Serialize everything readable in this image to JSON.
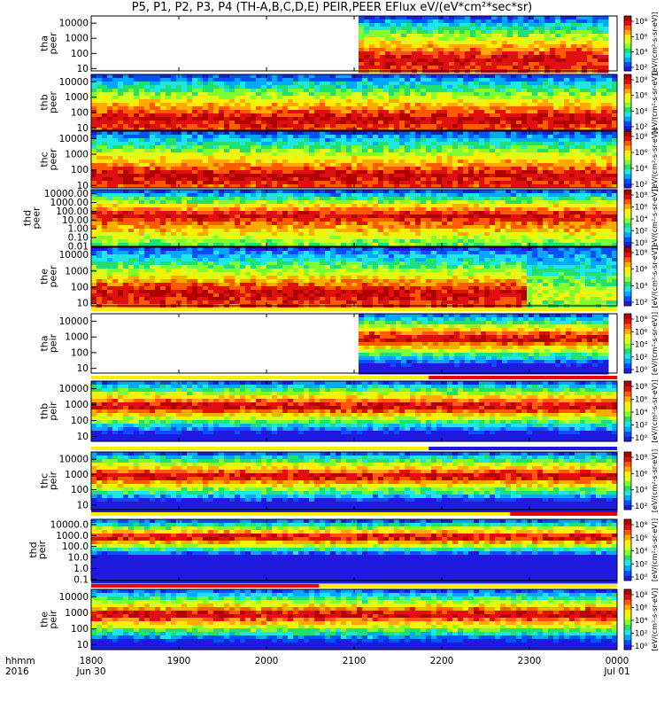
{
  "title": "P5, P1, P2, P3, P4 (TH-A,B,C,D,E) PEIR,PEER EFlux eV/(eV*cm²*sec*sr)",
  "colorbar_label": "[eV/(cm²-s-sr-eV)]",
  "colormap": [
    "#1e1ae0",
    "#0050ff",
    "#00a8ff",
    "#1ee6e6",
    "#20e070",
    "#80ff30",
    "#d8ff20",
    "#ffee00",
    "#ffaa00",
    "#ff5a00",
    "#e01010",
    "#b00000"
  ],
  "flag_colors": {
    "yellow": "#ffee00",
    "red": "#ee0000"
  },
  "chart_data": {
    "type": "heatmap",
    "x_axis": {
      "row_labels": [
        "hhmm",
        "2016"
      ],
      "tick_labels": [
        "1800",
        "1900",
        "2000",
        "2100",
        "2200",
        "2300",
        "0000"
      ],
      "tick_sublabels": [
        "Jun 30",
        "",
        "",
        "",
        "",
        "",
        "Jul 01"
      ],
      "range_hours": [
        18,
        24
      ]
    },
    "panels": [
      {
        "probe": "tha",
        "sensor": "peer",
        "y_ticks": [
          "10000",
          "1000",
          "100",
          "10"
        ],
        "y_values": [
          10000,
          1000,
          100,
          10
        ],
        "ylim": [
          7,
          30000
        ],
        "cb_ticks": [
          "10⁸",
          "10⁶",
          "10⁴",
          "10²"
        ],
        "data_start_hours": 21.05,
        "data_end_hours": 23.85
      },
      {
        "probe": "thb",
        "sensor": "peer",
        "y_ticks": [
          "10000",
          "1000",
          "100",
          "10"
        ],
        "y_values": [
          10000,
          1000,
          100,
          10
        ],
        "ylim": [
          7,
          30000
        ],
        "cb_ticks": [
          "10⁸",
          "10⁶",
          "10⁴",
          "10²"
        ],
        "data_start_hours": 18.0,
        "data_end_hours": 24.0
      },
      {
        "probe": "thc",
        "sensor": "peer",
        "y_ticks": [
          "10000",
          "1000",
          "100",
          "10"
        ],
        "y_values": [
          10000,
          1000,
          100,
          10
        ],
        "ylim": [
          7,
          30000
        ],
        "cb_ticks": [
          "10⁸",
          "10⁶",
          "10⁴",
          "10²"
        ],
        "data_start_hours": 18.0,
        "data_end_hours": 24.0
      },
      {
        "probe": "thd",
        "sensor": "peer",
        "y_ticks": [
          "10000.00",
          "1000.00",
          "100.00",
          "10.00",
          "1.00",
          "0.10",
          "0.01"
        ],
        "y_values": [
          10000,
          1000,
          100,
          10,
          1,
          0.1,
          0.01
        ],
        "ylim": [
          0.01,
          30000
        ],
        "cb_ticks": [
          "10⁸",
          "10⁶",
          "10⁴",
          "10²",
          "10⁰"
        ],
        "data_start_hours": 18.0,
        "data_end_hours": 24.0
      },
      {
        "probe": "the",
        "sensor": "peer",
        "y_ticks": [
          "10000",
          "1000",
          "100",
          "10"
        ],
        "y_values": [
          10000,
          1000,
          100,
          10
        ],
        "ylim": [
          7,
          30000
        ],
        "cb_ticks": [
          "10⁸",
          "10⁶",
          "10⁴",
          "10²"
        ],
        "data_start_hours": 18.0,
        "data_end_hours": 24.0
      },
      {
        "probe": "tha",
        "sensor": "peir",
        "y_ticks": [
          "10000",
          "1000",
          "100",
          "10"
        ],
        "y_values": [
          10000,
          1000,
          100,
          10
        ],
        "ylim": [
          5,
          30000
        ],
        "cb_ticks": [
          "10⁸",
          "10⁶",
          "10⁴",
          "10²",
          "10⁰"
        ],
        "data_start_hours": 21.05,
        "data_end_hours": 23.85
      },
      {
        "probe": "thb",
        "sensor": "peir",
        "y_ticks": [
          "10000",
          "1000",
          "100",
          "10"
        ],
        "y_values": [
          10000,
          1000,
          100,
          10
        ],
        "ylim": [
          5,
          30000
        ],
        "cb_ticks": [
          "10⁸",
          "10⁶",
          "10⁴",
          "10²",
          "10⁰"
        ],
        "data_start_hours": 18.0,
        "data_end_hours": 24.0
      },
      {
        "probe": "thc",
        "sensor": "peir",
        "y_ticks": [
          "10000",
          "1000",
          "100",
          "10"
        ],
        "y_values": [
          10000,
          1000,
          100,
          10
        ],
        "ylim": [
          5,
          30000
        ],
        "cb_ticks": [
          "10⁸",
          "10⁶",
          "10⁴",
          "10²"
        ],
        "data_start_hours": 18.0,
        "data_end_hours": 24.0
      },
      {
        "probe": "thd",
        "sensor": "peir",
        "y_ticks": [
          "10000.0",
          "1000.0",
          "100.0",
          "10.0",
          "1.0",
          "0.1"
        ],
        "y_values": [
          10000,
          1000,
          100,
          10,
          1,
          0.1
        ],
        "ylim": [
          0.08,
          30000
        ],
        "cb_ticks": [
          "10⁸",
          "10⁶",
          "10⁴",
          "10²",
          "10⁰"
        ],
        "data_start_hours": 18.0,
        "data_end_hours": 24.0
      },
      {
        "probe": "the",
        "sensor": "peir",
        "y_ticks": [
          "10000",
          "1000",
          "100",
          "10"
        ],
        "y_values": [
          10000,
          1000,
          100,
          10
        ],
        "ylim": [
          5,
          30000
        ],
        "cb_ticks": [
          "10⁸",
          "10⁶",
          "10⁴",
          "10²",
          "10⁰"
        ],
        "data_start_hours": 18.0,
        "data_end_hours": 24.0
      }
    ],
    "flag_bars": [
      {
        "after_panel": 4,
        "segments": [
          {
            "from": 18.0,
            "to": 24.0,
            "color": "yellow"
          }
        ]
      },
      {
        "after_panel": 5,
        "segments": [
          {
            "from": 18.0,
            "to": 21.85,
            "color": "yellow"
          },
          {
            "from": 21.85,
            "to": 24.0,
            "color": "red"
          }
        ]
      },
      {
        "after_panel": 6,
        "segments": [
          {
            "from": 18.0,
            "to": 21.85,
            "color": "yellow"
          },
          {
            "from": 21.85,
            "to": 24.0,
            "color": "blue"
          }
        ]
      },
      {
        "after_panel": 7,
        "segments": [
          {
            "from": 18.0,
            "to": 22.78,
            "color": "yellow"
          },
          {
            "from": 22.78,
            "to": 24.0,
            "color": "red"
          }
        ]
      },
      {
        "after_panel": 8,
        "segments": [
          {
            "from": 18.0,
            "to": 20.6,
            "color": "red"
          },
          {
            "from": 20.6,
            "to": 24.0,
            "color": "yellow"
          }
        ]
      }
    ]
  }
}
